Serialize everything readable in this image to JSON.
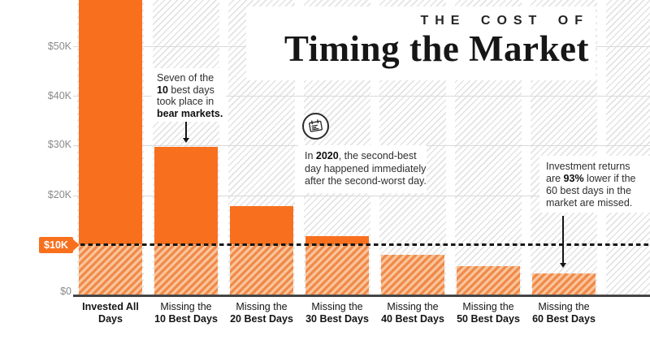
{
  "title": {
    "kicker": "THE COST OF",
    "main": "Timing the Market"
  },
  "y_axis": {
    "labels": [
      "$50K",
      "$40K",
      "$30K",
      "$20K",
      "$0"
    ],
    "highlight_label": "$10K"
  },
  "annotations": {
    "bear_markets": "Seven of the\n**10** best days\ntook place in\n**bear markets.**",
    "note_2020": "In **2020**, the second-best\nday happened immediately\nafter the second-worst day.",
    "returns_93": "Investment returns\nare **93%** lower if the\n60 best days in the\nmarket are missed."
  },
  "icons": {
    "newspaper": "newspaper-calendar-icon"
  },
  "colors": {
    "accent_orange": "#F8701E",
    "hatch_orange_light": "#FAC49A",
    "hatch_orange_dark": "#EF8A4A",
    "hatch_gray": "#E3E3E3",
    "dashed_line": "#151515",
    "title_color": "#161616",
    "axis_label_gray": "#8A8A8A"
  },
  "chart_data": {
    "type": "bar",
    "title": "The Cost of Timing the Market",
    "categories": [
      "Invested All Days",
      "Missing the 10 Best Days",
      "Missing the 20 Best Days",
      "Missing the 30 Best Days",
      "Missing the 40 Best Days",
      "Missing the 50 Best Days",
      "Missing the 60 Best Days"
    ],
    "label_lines": [
      [
        "Invested All Days"
      ],
      [
        "Missing the",
        "10 Best Days"
      ],
      [
        "Missing the",
        "20 Best Days"
      ],
      [
        "Missing the",
        "30 Best Days"
      ],
      [
        "Missing the",
        "40 Best Days"
      ],
      [
        "Missing the",
        "50 Best Days"
      ],
      [
        "Missing the",
        "60 Best Days"
      ]
    ],
    "values": [
      64844,
      29708,
      17826,
      11701,
      8048,
      5746,
      4205
    ],
    "xlabel": "",
    "ylabel": "",
    "ylim": [
      0,
      59300
    ],
    "first_bar_clipped_at_top": true,
    "ytick_values": [
      0,
      10000,
      20000,
      30000,
      40000,
      50000
    ],
    "ytick_labels": [
      "$0",
      "$10K",
      "$20K",
      "$30K",
      "$40K",
      "$50K"
    ],
    "highlight_line": {
      "value": 10000,
      "label": "$10K",
      "style": "dashed"
    },
    "bar_fill_above_highlight": "solid",
    "bar_fill_below_highlight": "hatched",
    "grid": "horizontal",
    "legend": "none"
  }
}
